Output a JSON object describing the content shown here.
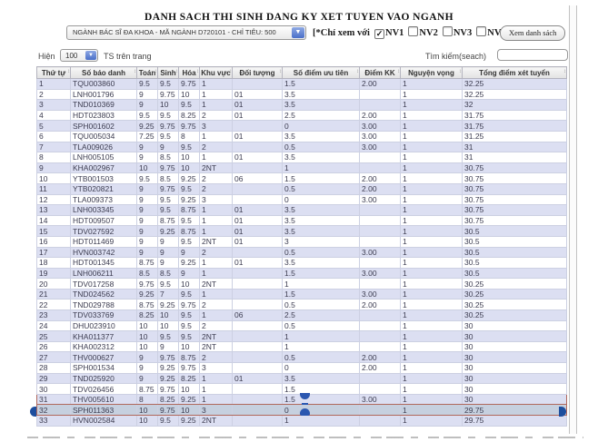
{
  "header": {
    "title": "DANH SACH THI SINH DANG KY XET TUYEN VAO NGANH",
    "major_select": {
      "value": "NGÀNH BÁC SĨ ĐA KHOA - MÃ NGÀNH D720101 - CHỈ TIÊU: 500"
    },
    "filter": {
      "prefix": "[*Chỉ xem với",
      "options": [
        {
          "label": "NV1",
          "checked": true
        },
        {
          "label": "NV2",
          "checked": false
        },
        {
          "label": "NV3",
          "checked": false
        },
        {
          "label": "NV4",
          "checked": false
        }
      ],
      "suffix": "]"
    },
    "view_list_button": "Xem danh sách"
  },
  "list_controls": {
    "show_label": "Hiện",
    "page_size_value": "100",
    "per_page_suffix": "TS trên trang",
    "search_label": "Tìm kiếm(seach)",
    "search_value": ""
  },
  "table": {
    "columns": [
      "Thứ tự",
      "Số báo danh",
      "Toán",
      "Sinh",
      "Hóa",
      "Khu vực",
      "Đối tượng",
      "Số điểm ưu tiên",
      "Điểm KK",
      "Nguyện vọng",
      "Tổng điểm xét tuyển"
    ],
    "rows": [
      [
        "1",
        "TQU003860",
        "9.5",
        "9.5",
        "9.75",
        "1",
        "",
        "1.5",
        "2.00",
        "1",
        "32.25"
      ],
      [
        "2",
        "LNH001796",
        "9",
        "9.75",
        "10",
        "1",
        "01",
        "3.5",
        "",
        "1",
        "32.25"
      ],
      [
        "3",
        "TND010369",
        "9",
        "10",
        "9.5",
        "1",
        "01",
        "3.5",
        "",
        "1",
        "32"
      ],
      [
        "4",
        "HDT023803",
        "9.5",
        "9.5",
        "8.25",
        "2",
        "01",
        "2.5",
        "2.00",
        "1",
        "31.75"
      ],
      [
        "5",
        "SPH001602",
        "9.25",
        "9.75",
        "9.75",
        "3",
        "",
        "0",
        "3.00",
        "1",
        "31.75"
      ],
      [
        "6",
        "TQU005034",
        "7.25",
        "9.5",
        "8",
        "1",
        "01",
        "3.5",
        "3.00",
        "1",
        "31.25"
      ],
      [
        "7",
        "TLA009026",
        "9",
        "9",
        "9.5",
        "2",
        "",
        "0.5",
        "3.00",
        "1",
        "31"
      ],
      [
        "8",
        "LNH005105",
        "9",
        "8.5",
        "10",
        "1",
        "01",
        "3.5",
        "",
        "1",
        "31"
      ],
      [
        "9",
        "KHA002967",
        "10",
        "9.75",
        "10",
        "2NT",
        "",
        "1",
        "",
        "1",
        "30.75"
      ],
      [
        "10",
        "YTB001503",
        "9.5",
        "8.5",
        "9.25",
        "2",
        "06",
        "1.5",
        "2.00",
        "1",
        "30.75"
      ],
      [
        "11",
        "YTB020821",
        "9",
        "9.75",
        "9.5",
        "2",
        "",
        "0.5",
        "2.00",
        "1",
        "30.75"
      ],
      [
        "12",
        "TLA009373",
        "9",
        "9.5",
        "9.25",
        "3",
        "",
        "0",
        "3.00",
        "1",
        "30.75"
      ],
      [
        "13",
        "LNH003345",
        "9",
        "9.5",
        "8.75",
        "1",
        "01",
        "3.5",
        "",
        "1",
        "30.75"
      ],
      [
        "14",
        "HDT009507",
        "9",
        "8.75",
        "9.5",
        "1",
        "01",
        "3.5",
        "",
        "1",
        "30.75"
      ],
      [
        "15",
        "TDV027592",
        "9",
        "9.25",
        "8.75",
        "1",
        "01",
        "3.5",
        "",
        "1",
        "30.5"
      ],
      [
        "16",
        "HDT011469",
        "9",
        "9",
        "9.5",
        "2NT",
        "01",
        "3",
        "",
        "1",
        "30.5"
      ],
      [
        "17",
        "HVN003742",
        "9",
        "9",
        "9",
        "2",
        "",
        "0.5",
        "3.00",
        "1",
        "30.5"
      ],
      [
        "18",
        "HDT001345",
        "8.75",
        "9",
        "9.25",
        "1",
        "01",
        "3.5",
        "",
        "1",
        "30.5"
      ],
      [
        "19",
        "LNH006211",
        "8.5",
        "8.5",
        "9",
        "1",
        "",
        "1.5",
        "3.00",
        "1",
        "30.5"
      ],
      [
        "20",
        "TDV017258",
        "9.75",
        "9.5",
        "10",
        "2NT",
        "",
        "1",
        "",
        "1",
        "30.25"
      ],
      [
        "21",
        "TND024562",
        "9.25",
        "7",
        "9.5",
        "1",
        "",
        "1.5",
        "3.00",
        "1",
        "30.25"
      ],
      [
        "22",
        "TND029788",
        "8.75",
        "9.25",
        "9.75",
        "2",
        "",
        "0.5",
        "2.00",
        "1",
        "30.25"
      ],
      [
        "23",
        "TDV033769",
        "8.25",
        "10",
        "9.5",
        "1",
        "06",
        "2.5",
        "",
        "1",
        "30.25"
      ],
      [
        "24",
        "DHU023910",
        "10",
        "10",
        "9.5",
        "2",
        "",
        "0.5",
        "",
        "1",
        "30"
      ],
      [
        "25",
        "KHA011377",
        "10",
        "9.5",
        "9.5",
        "2NT",
        "",
        "1",
        "",
        "1",
        "30"
      ],
      [
        "26",
        "KHA002312",
        "10",
        "9",
        "10",
        "2NT",
        "",
        "1",
        "",
        "1",
        "30"
      ],
      [
        "27",
        "THV000627",
        "9",
        "9.75",
        "8.75",
        "2",
        "",
        "0.5",
        "2.00",
        "1",
        "30"
      ],
      [
        "28",
        "SPH001534",
        "9",
        "9.25",
        "9.75",
        "3",
        "",
        "0",
        "2.00",
        "1",
        "30"
      ],
      [
        "29",
        "TND025920",
        "9",
        "9.25",
        "8.25",
        "1",
        "01",
        "3.5",
        "",
        "1",
        "30"
      ],
      [
        "30",
        "TDV026456",
        "8.75",
        "9.75",
        "10",
        "1",
        "",
        "1.5",
        "",
        "1",
        "30"
      ],
      [
        "31",
        "THV005610",
        "8",
        "8.25",
        "9.25",
        "1",
        "",
        "1.5",
        "3.00",
        "1",
        "30"
      ],
      [
        "32",
        "SPH011363",
        "10",
        "9.75",
        "10",
        "3",
        "",
        "0",
        "",
        "1",
        "29.75"
      ],
      [
        "33",
        "HVN002584",
        "10",
        "9.5",
        "9.25",
        "2NT",
        "",
        "1",
        "",
        "1",
        "29.75"
      ]
    ],
    "selected_row_number": "32",
    "outlined_row_numbers": [
      "31",
      "32"
    ]
  },
  "colors": {
    "row_alt": "#dcdff2",
    "row_selected": "#c6d0df",
    "selection_outline": "#b0685c",
    "handle_blue": "#1d4e9e",
    "select_arrow_accent": "#4a6fc8"
  }
}
